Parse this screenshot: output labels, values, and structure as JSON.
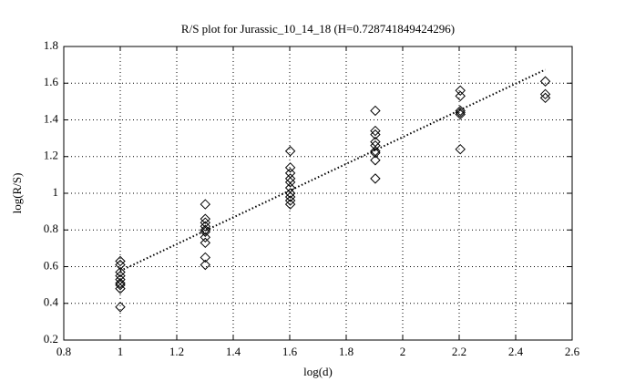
{
  "chart_data": {
    "type": "scatter",
    "title": "R/S plot for Jurassic_10_14_18 (H=0.728741849424296)",
    "xlabel": "log(d)",
    "ylabel": "log(R/S)",
    "x": [
      1,
      1,
      1,
      1,
      1,
      1,
      1,
      1,
      1,
      1.301,
      1.301,
      1.301,
      1.301,
      1.301,
      1.301,
      1.301,
      1.301,
      1.301,
      1.301,
      1.602,
      1.602,
      1.602,
      1.602,
      1.602,
      1.602,
      1.602,
      1.602,
      1.602,
      1.602,
      1.903,
      1.903,
      1.903,
      1.903,
      1.903,
      1.903,
      1.903,
      1.903,
      1.903,
      2.204,
      2.204,
      2.204,
      2.204,
      2.204,
      2.204,
      2.505,
      2.505,
      2.505
    ],
    "values": [
      0.63,
      0.61,
      0.57,
      0.55,
      0.53,
      0.51,
      0.5,
      0.48,
      0.38,
      0.94,
      0.86,
      0.84,
      0.82,
      0.8,
      0.79,
      0.76,
      0.73,
      0.65,
      0.61,
      1.23,
      1.14,
      1.11,
      1.08,
      1.06,
      1.03,
      1.0,
      0.98,
      0.96,
      0.94,
      1.45,
      1.34,
      1.32,
      1.28,
      1.26,
      1.23,
      1.22,
      1.18,
      1.08,
      1.56,
      1.53,
      1.45,
      1.44,
      1.43,
      1.24,
      1.61,
      1.54,
      1.52
    ],
    "color": "#000000",
    "fit_line": {
      "x": [
        1,
        2.505
      ],
      "values": [
        0.577,
        1.674
      ]
    },
    "xlim": [
      0.8,
      2.6
    ],
    "xticks": [
      0.8,
      1,
      1.2,
      1.4,
      1.6,
      1.8,
      2,
      2.2,
      2.4,
      2.6
    ],
    "ylim": [
      0.2,
      1.8
    ],
    "yticks": [
      0.2,
      0.4,
      0.6,
      0.8,
      1,
      1.2,
      1.4,
      1.6,
      1.8
    ],
    "grid": true
  }
}
